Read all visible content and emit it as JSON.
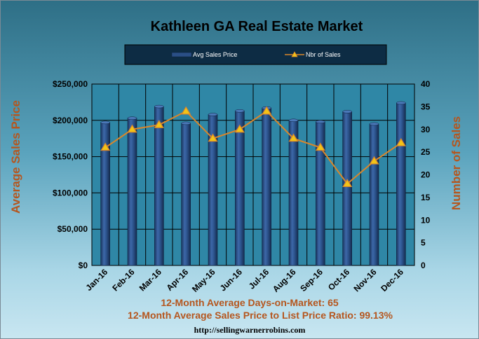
{
  "chart_data": {
    "type": "bar",
    "title": "Kathleen GA Real Estate Market",
    "categories": [
      "Jan-16",
      "Feb-16",
      "Mar-16",
      "Apr-16",
      "May-16",
      "Jun-16",
      "Jul-16",
      "Aug-16",
      "Sep-16",
      "Oct-16",
      "Nov-16",
      "Dec-16"
    ],
    "series": [
      {
        "name": "Avg Sales Price",
        "type": "bar",
        "axis": "left",
        "values": [
          197000,
          203000,
          219000,
          196000,
          208000,
          213000,
          217000,
          200000,
          198000,
          212000,
          195000,
          224000
        ]
      },
      {
        "name": "Nbr of Sales",
        "type": "line",
        "axis": "right",
        "values": [
          26,
          30,
          31,
          34,
          28,
          30,
          34,
          28,
          26,
          18,
          23,
          27
        ]
      }
    ],
    "ylabel_left": "Average Sales Price",
    "ylabel_right": "Number of Sales",
    "ylim_left": [
      0,
      250000
    ],
    "ylim_right": [
      0,
      40
    ],
    "yticks_left": [
      "$0",
      "$50,000",
      "$100,000",
      "$150,000",
      "$200,000",
      "$250,000"
    ],
    "yticks_right": [
      "0",
      "5",
      "10",
      "15",
      "20",
      "25",
      "30",
      "35",
      "40"
    ],
    "grid": true,
    "legend_position": "top-center",
    "colors": {
      "bar": "#2a4f86",
      "line": "#d9862b",
      "marker_fill": "#f2c418",
      "axis_title": "#b5561e"
    }
  },
  "footer": {
    "days_on_market": "12-Month Average Days-on-Market: 65",
    "price_ratio": "12-Month Average Sales Price to List Price Ratio: 99.13%",
    "url": "http://sellingwarnerrobins.com"
  }
}
